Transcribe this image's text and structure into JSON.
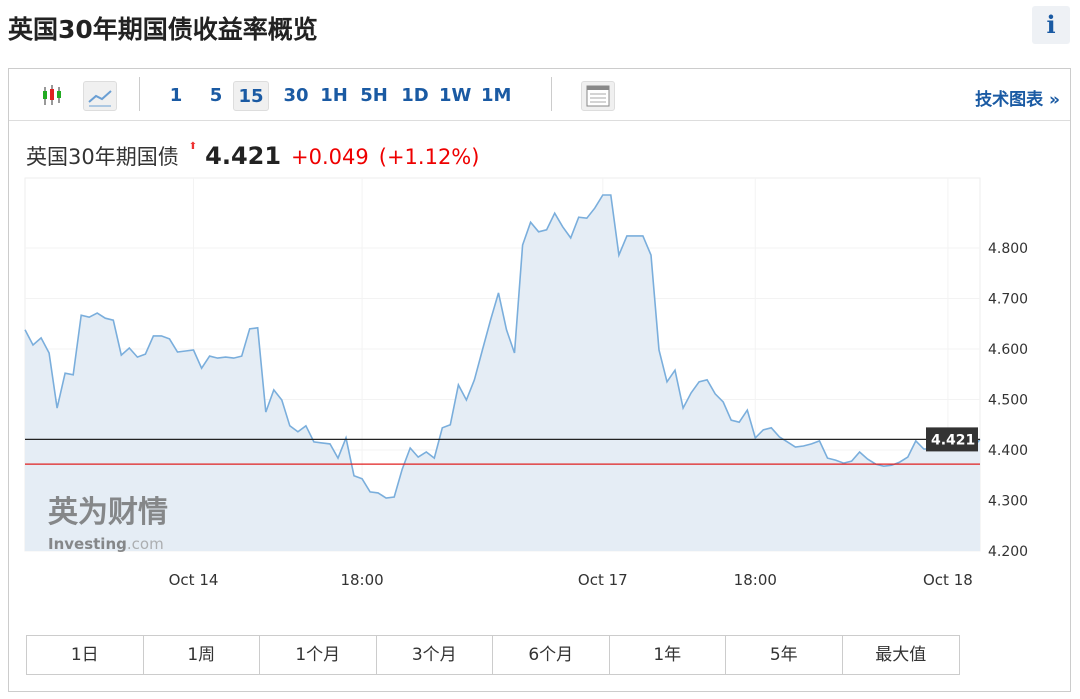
{
  "title": "英国30年期国债收益率概览",
  "info_icon": "i",
  "toolbar": {
    "chart_icons": [
      "candlestick-icon",
      "line-chart-icon"
    ],
    "intervals": [
      "1",
      "5",
      "15",
      "30",
      "1H",
      "5H",
      "1D",
      "1W",
      "1M"
    ],
    "selected_interval": "15",
    "table_icon": "table-icon",
    "tech_chart": "技术图表 »"
  },
  "quote": {
    "name": "英国30年期国债",
    "price": "4.421",
    "change": "+0.049",
    "change_pct": "(+1.12%)",
    "up_color": "#ee0000"
  },
  "ranges": [
    "1日",
    "1周",
    "1个月",
    "3个月",
    "6个月",
    "1年",
    "5年",
    "最大值"
  ],
  "watermark": {
    "cn": "英为财情",
    "en": "Investing",
    "en2": ".com"
  },
  "chart_data": {
    "type": "area",
    "ylim": [
      4.2,
      4.93
    ],
    "y_ticks": [
      "4.200",
      "4.300",
      "4.400",
      "4.500",
      "4.600",
      "4.700",
      "4.800"
    ],
    "x_ticks": [
      {
        "label": "Oct 14",
        "index": 21
      },
      {
        "label": "18:00",
        "index": 42
      },
      {
        "label": "Oct 17",
        "index": 72
      },
      {
        "label": "18:00",
        "index": 91
      },
      {
        "label": "Oct 18",
        "index": 115
      }
    ],
    "last_value": 4.421,
    "last_label": "4.421",
    "prev_close": 4.372,
    "line_color": "#7aaedc",
    "fill_color": "#e5edf5",
    "ref_color": "#e02020",
    "values": [
      4.638,
      4.608,
      4.622,
      4.592,
      4.483,
      4.552,
      4.549,
      4.667,
      4.663,
      4.671,
      4.661,
      4.657,
      4.588,
      4.602,
      4.584,
      4.59,
      4.626,
      4.626,
      4.62,
      4.594,
      4.596,
      4.598,
      4.562,
      4.586,
      4.582,
      4.584,
      4.582,
      4.586,
      4.64,
      4.642,
      4.475,
      4.519,
      4.499,
      4.448,
      4.436,
      4.448,
      4.416,
      4.414,
      4.412,
      4.384,
      4.424,
      4.349,
      4.343,
      4.317,
      4.315,
      4.305,
      4.307,
      4.362,
      4.404,
      4.386,
      4.396,
      4.384,
      4.444,
      4.45,
      4.529,
      4.499,
      4.539,
      4.598,
      4.657,
      4.711,
      4.638,
      4.592,
      4.806,
      4.851,
      4.832,
      4.836,
      4.869,
      4.842,
      4.82,
      4.861,
      4.859,
      4.879,
      4.905,
      4.905,
      4.786,
      4.824,
      4.824,
      4.824,
      4.786,
      4.598,
      4.535,
      4.558,
      4.483,
      4.513,
      4.535,
      4.539,
      4.511,
      4.495,
      4.459,
      4.455,
      4.479,
      4.424,
      4.44,
      4.444,
      4.426,
      4.416,
      4.406,
      4.408,
      4.412,
      4.418,
      4.384,
      4.38,
      4.374,
      4.378,
      4.396,
      4.382,
      4.372,
      4.368,
      4.37,
      4.376,
      4.386,
      4.418,
      4.402,
      4.402,
      4.414,
      4.408,
      4.402,
      4.408,
      4.402,
      4.421
    ]
  }
}
